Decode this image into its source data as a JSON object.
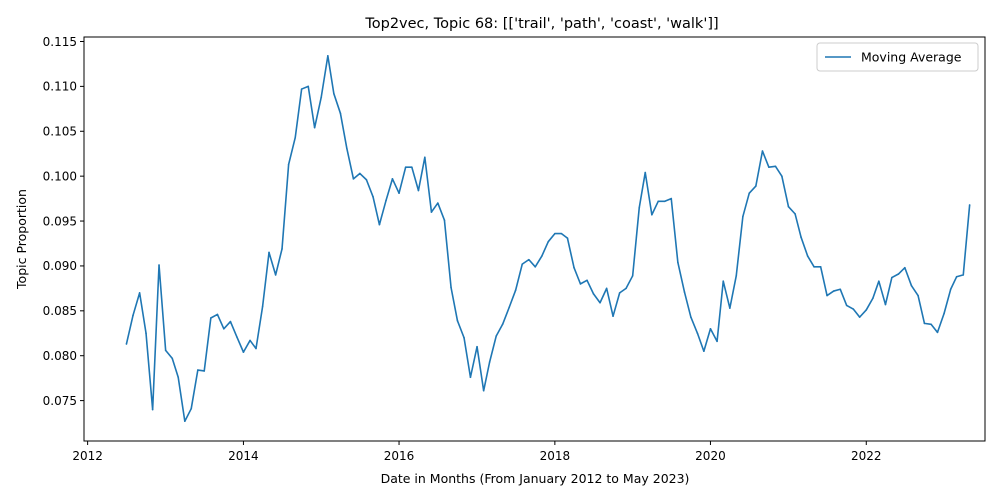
{
  "chart_data": {
    "type": "line",
    "title": "Top2vec, Topic 68: [['trail', 'path', 'coast', 'walk']]",
    "xlabel": "Date in Months (From January 2012 to May 2023)",
    "ylabel": "Topic Proportion",
    "xlim": [
      "2011-12-15",
      "2023-07-12"
    ],
    "ylim": [
      0.0705,
      0.1155
    ],
    "x_ticks": [
      {
        "value": "2012-01-01",
        "label": "2012"
      },
      {
        "value": "2014-01-01",
        "label": "2014"
      },
      {
        "value": "2016-01-01",
        "label": "2016"
      },
      {
        "value": "2018-01-01",
        "label": "2018"
      },
      {
        "value": "2020-01-01",
        "label": "2020"
      },
      {
        "value": "2022-01-01",
        "label": "2022"
      }
    ],
    "y_ticks": [
      {
        "value": 0.075,
        "label": "0.075"
      },
      {
        "value": 0.08,
        "label": "0.080"
      },
      {
        "value": 0.085,
        "label": "0.085"
      },
      {
        "value": 0.09,
        "label": "0.090"
      },
      {
        "value": 0.095,
        "label": "0.095"
      },
      {
        "value": 0.1,
        "label": "0.100"
      },
      {
        "value": 0.105,
        "label": "0.105"
      },
      {
        "value": 0.11,
        "label": "0.110"
      },
      {
        "value": 0.115,
        "label": "0.115"
      }
    ],
    "grid": false,
    "legend_position": "top-right",
    "color": "#1f77b4",
    "series": [
      {
        "name": "Moving Average",
        "x": [
          "2012-07",
          "2012-08",
          "2012-09",
          "2012-10",
          "2012-11",
          "2012-12",
          "2013-01",
          "2013-02",
          "2013-03",
          "2013-04",
          "2013-05",
          "2013-06",
          "2013-07",
          "2013-08",
          "2013-09",
          "2013-10",
          "2013-11",
          "2013-12",
          "2014-01",
          "2014-02",
          "2014-03",
          "2014-04",
          "2014-05",
          "2014-06",
          "2014-07",
          "2014-08",
          "2014-09",
          "2014-10",
          "2014-11",
          "2014-12",
          "2015-01",
          "2015-02",
          "2015-03",
          "2015-04",
          "2015-05",
          "2015-06",
          "2015-07",
          "2015-08",
          "2015-09",
          "2015-10",
          "2015-11",
          "2015-12",
          "2016-01",
          "2016-02",
          "2016-03",
          "2016-04",
          "2016-05",
          "2016-06",
          "2016-07",
          "2016-08",
          "2016-09",
          "2016-10",
          "2016-11",
          "2016-12",
          "2017-01",
          "2017-02",
          "2017-03",
          "2017-04",
          "2017-05",
          "2017-06",
          "2017-07",
          "2017-08",
          "2017-09",
          "2017-10",
          "2017-11",
          "2017-12",
          "2018-01",
          "2018-02",
          "2018-03",
          "2018-04",
          "2018-05",
          "2018-06",
          "2018-07",
          "2018-08",
          "2018-09",
          "2018-10",
          "2018-11",
          "2018-12",
          "2019-01",
          "2019-02",
          "2019-03",
          "2019-04",
          "2019-05",
          "2019-06",
          "2019-07",
          "2019-08",
          "2019-09",
          "2019-10",
          "2019-11",
          "2019-12",
          "2020-01",
          "2020-02",
          "2020-03",
          "2020-04",
          "2020-05",
          "2020-06",
          "2020-07",
          "2020-08",
          "2020-09",
          "2020-10",
          "2020-11",
          "2020-12",
          "2021-01",
          "2021-02",
          "2021-03",
          "2021-04",
          "2021-05",
          "2021-06",
          "2021-07",
          "2021-08",
          "2021-09",
          "2021-10",
          "2021-11",
          "2021-12",
          "2022-01",
          "2022-02",
          "2022-03",
          "2022-04",
          "2022-05",
          "2022-06",
          "2022-07",
          "2022-08",
          "2022-09",
          "2022-10",
          "2022-11",
          "2022-12",
          "2023-01",
          "2023-02",
          "2023-03",
          "2023-04",
          "2023-05"
        ],
        "values": [
          0.0813,
          0.0845,
          0.087,
          0.0825,
          0.074,
          0.0901,
          0.0806,
          0.0797,
          0.0776,
          0.0727,
          0.0741,
          0.0784,
          0.0783,
          0.0842,
          0.0846,
          0.083,
          0.0838,
          0.0821,
          0.0804,
          0.0817,
          0.0808,
          0.0855,
          0.0915,
          0.089,
          0.0919,
          0.1013,
          0.1043,
          0.1097,
          0.11,
          0.1054,
          0.1088,
          0.1134,
          0.1092,
          0.107,
          0.1031,
          0.0997,
          0.1003,
          0.0996,
          0.0977,
          0.0946,
          0.0973,
          0.0997,
          0.0981,
          0.101,
          0.101,
          0.0984,
          0.1021,
          0.096,
          0.097,
          0.0951,
          0.0876,
          0.0839,
          0.082,
          0.0776,
          0.081,
          0.0761,
          0.0793,
          0.0822,
          0.0835,
          0.0854,
          0.0873,
          0.0902,
          0.0907,
          0.0899,
          0.0911,
          0.0927,
          0.0936,
          0.0936,
          0.0931,
          0.0898,
          0.088,
          0.0884,
          0.0869,
          0.0859,
          0.0875,
          0.0844,
          0.087,
          0.0875,
          0.0889,
          0.0965,
          0.1004,
          0.0957,
          0.0972,
          0.0972,
          0.0975,
          0.0904,
          0.0871,
          0.0843,
          0.0825,
          0.0805,
          0.083,
          0.0816,
          0.0883,
          0.0853,
          0.0889,
          0.0955,
          0.0981,
          0.0989,
          0.1028,
          0.101,
          0.1011,
          0.1,
          0.0966,
          0.0958,
          0.0932,
          0.0911,
          0.0899,
          0.0899,
          0.0867,
          0.0872,
          0.0874,
          0.0856,
          0.0852,
          0.0843,
          0.0851,
          0.0864,
          0.0883,
          0.0857,
          0.0887,
          0.0891,
          0.0898,
          0.0878,
          0.0867,
          0.0836,
          0.0835,
          0.0826,
          0.0847,
          0.0874,
          0.0888,
          0.089,
          0.0968
        ]
      }
    ]
  }
}
